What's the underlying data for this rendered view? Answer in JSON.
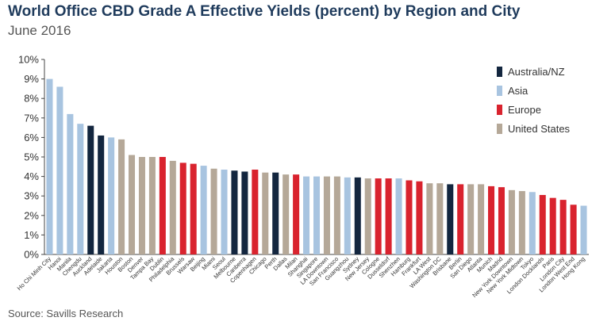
{
  "title": "World Office CBD Grade A Effective Yields (percent) by Region and City",
  "subtitle": "June 2016",
  "source": "Source: Savills Research",
  "colors": {
    "Australia/NZ": "#13263f",
    "Asia": "#a8c4e0",
    "Europe": "#d9232e",
    "United States": "#b5a898"
  },
  "chart_data": {
    "type": "bar",
    "title": "World Office CBD Grade A Effective Yields (percent) by Region and City",
    "subtitle": "June 2016",
    "xlabel": "",
    "ylabel": "",
    "ylim": [
      0,
      10
    ],
    "yticks": [
      "0%",
      "1%",
      "2%",
      "3%",
      "4%",
      "5%",
      "6%",
      "7%",
      "8%",
      "9%",
      "10%"
    ],
    "grid": false,
    "legend_position": "top-right",
    "legend": [
      "Australia/NZ",
      "Asia",
      "Europe",
      "United States"
    ],
    "categories": [
      "Ho Chi Minh City",
      "Hanoi",
      "Manila",
      "Chengdu",
      "Auckland",
      "Adelaide",
      "Jakarta",
      "Houston",
      "Boston",
      "Denver",
      "Tampa Bay",
      "Dublin",
      "Philadelphia",
      "Brussels",
      "Warsaw",
      "Beijing",
      "Miami",
      "Seoul",
      "Melbourne",
      "Canberra",
      "Copenhagen",
      "Chicago",
      "Perth",
      "Dallas",
      "Milan",
      "Shanghai",
      "Singapore",
      "LA Downtown",
      "San Francisco",
      "Guangzhou",
      "Sydney",
      "New Jersey",
      "Cologne",
      "Dusseldorf",
      "Shenzhen",
      "Hamburg",
      "Frankfurt",
      "LA West",
      "Washington DC",
      "Brisbane",
      "Berlin",
      "San Diego",
      "Atlanta",
      "Munich",
      "Madrid",
      "New York Downtown",
      "New York Midtown",
      "Tokyo",
      "London Docklands",
      "Paris",
      "London City",
      "London West End",
      "Hong Kong"
    ],
    "values": [
      9.0,
      8.6,
      7.2,
      6.7,
      6.6,
      6.1,
      6.0,
      5.9,
      5.1,
      5.0,
      5.0,
      5.0,
      4.8,
      4.7,
      4.65,
      4.55,
      4.4,
      4.35,
      4.3,
      4.25,
      4.35,
      4.2,
      4.2,
      4.1,
      4.1,
      4.0,
      4.0,
      4.0,
      4.0,
      3.95,
      3.95,
      3.9,
      3.9,
      3.9,
      3.9,
      3.8,
      3.75,
      3.65,
      3.65,
      3.6,
      3.6,
      3.6,
      3.6,
      3.5,
      3.45,
      3.3,
      3.25,
      3.2,
      3.05,
      2.9,
      2.8,
      2.55,
      2.5
    ],
    "regions": [
      "Asia",
      "Asia",
      "Asia",
      "Asia",
      "Australia/NZ",
      "Australia/NZ",
      "Asia",
      "United States",
      "United States",
      "United States",
      "United States",
      "Europe",
      "United States",
      "Europe",
      "Europe",
      "Asia",
      "United States",
      "Asia",
      "Australia/NZ",
      "Australia/NZ",
      "Europe",
      "United States",
      "Australia/NZ",
      "United States",
      "Europe",
      "Asia",
      "Asia",
      "United States",
      "United States",
      "Asia",
      "Australia/NZ",
      "United States",
      "Europe",
      "Europe",
      "Asia",
      "Europe",
      "Europe",
      "United States",
      "United States",
      "Australia/NZ",
      "Europe",
      "United States",
      "United States",
      "Europe",
      "Europe",
      "United States",
      "United States",
      "Asia",
      "Europe",
      "Europe",
      "Europe",
      "Europe",
      "Asia"
    ]
  }
}
